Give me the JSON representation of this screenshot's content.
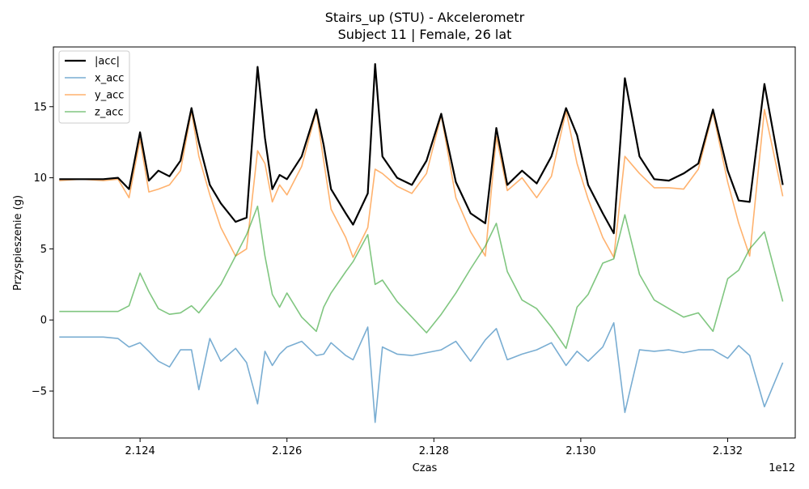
{
  "chart_data": {
    "type": "line",
    "title": "Stairs_up (STU) - Akcelerometr",
    "subtitle": "Subject 11 | Female, 26 lat",
    "xlabel": "Czas",
    "ylabel": "Przyspieszenie (g)",
    "x_offset_label": "1e12",
    "xlim": [
      2.12282,
      2.13292
    ],
    "ylim": [
      -8.3,
      19.2
    ],
    "x_ticks": [
      2.124,
      2.126,
      2.128,
      2.13,
      2.132
    ],
    "x_tick_labels": [
      "2.124",
      "2.126",
      "2.128",
      "2.130",
      "2.132"
    ],
    "y_ticks": [
      -5,
      0,
      5,
      10,
      15
    ],
    "y_tick_labels": [
      "−5",
      "0",
      "5",
      "10",
      "15"
    ],
    "grid": false,
    "legend_position": "top-left",
    "x": [
      2.1229,
      2.1232,
      2.1235,
      2.1237,
      2.12385,
      2.124,
      2.12412,
      2.12425,
      2.1244,
      2.12455,
      2.1247,
      2.1248,
      2.12495,
      2.1251,
      2.1253,
      2.12545,
      2.1256,
      2.1257,
      2.1258,
      2.1259,
      2.126,
      2.1262,
      2.1264,
      2.1265,
      2.1266,
      2.1268,
      2.1269,
      2.1271,
      2.1272,
      2.1273,
      2.1275,
      2.1277,
      2.1279,
      2.1281,
      2.1283,
      2.1285,
      2.1287,
      2.12885,
      2.129,
      2.1292,
      2.1294,
      2.1296,
      2.1298,
      2.12995,
      2.1301,
      2.1303,
      2.13045,
      2.1306,
      2.1308,
      2.131,
      2.1312,
      2.1314,
      2.1316,
      2.1318,
      2.132,
      2.13215,
      2.1323,
      2.1325,
      2.13275
    ],
    "series": [
      {
        "name": "|acc|",
        "color": "#000000",
        "values": [
          9.9,
          9.9,
          9.9,
          10,
          9.2,
          13.2,
          9.8,
          10.5,
          10.1,
          11.2,
          14.9,
          12.5,
          9.5,
          8.2,
          6.9,
          7.2,
          17.8,
          12.8,
          9.2,
          10.2,
          9.9,
          11.5,
          14.8,
          12.3,
          9.2,
          7.5,
          6.7,
          8.9,
          18,
          11.5,
          10.0,
          9.5,
          11.2,
          14.5,
          9.7,
          7.5,
          6.8,
          13.5,
          9.5,
          10.5,
          9.6,
          11.5,
          14.9,
          13.0,
          9.5,
          7.5,
          6.1,
          17,
          11.5,
          9.9,
          9.8,
          10.3,
          11,
          14.8,
          10.5,
          8.4,
          8.3,
          16.6,
          9.5
        ]
      },
      {
        "name": "x_acc",
        "color": "#1f77b4",
        "values": [
          -1.2,
          -1.2,
          -1.2,
          -1.3,
          -1.9,
          -1.6,
          -2.2,
          -2.9,
          -3.3,
          -2.1,
          -2.1,
          -4.9,
          -1.3,
          -2.9,
          -2.0,
          -3.0,
          -5.9,
          -2.2,
          -3.2,
          -2.4,
          -1.9,
          -1.5,
          -2.5,
          -2.4,
          -1.6,
          -2.5,
          -2.8,
          -0.5,
          -7.2,
          -1.9,
          -2.4,
          -2.5,
          -2.3,
          -2.1,
          -1.5,
          -2.9,
          -1.4,
          -0.6,
          -2.8,
          -2.4,
          -2.1,
          -1.6,
          -3.2,
          -2.2,
          -2.9,
          -1.9,
          -0.2,
          -6.5,
          -2.1,
          -2.2,
          -2.1,
          -2.3,
          -2.1,
          -2.1,
          -2.7,
          -1.8,
          -2.5,
          -6.1,
          -3.0
        ]
      },
      {
        "name": "y_acc",
        "color": "#ff7f0e",
        "values": [
          9.8,
          9.9,
          9.8,
          9.9,
          8.6,
          12.7,
          9.0,
          9.2,
          9.5,
          10.5,
          14.7,
          11.5,
          8.8,
          6.5,
          4.5,
          5.0,
          11.9,
          11.0,
          8.3,
          9.5,
          8.8,
          10.8,
          14.7,
          11.2,
          7.8,
          5.8,
          4.4,
          6.5,
          10.6,
          10.3,
          9.4,
          8.9,
          10.3,
          14.4,
          8.6,
          6.2,
          4.5,
          12.9,
          9.1,
          10.0,
          8.6,
          10.1,
          14.7,
          11.0,
          8.5,
          5.8,
          4.4,
          11.5,
          10.3,
          9.3,
          9.3,
          9.2,
          10.6,
          14.6,
          9.7,
          6.8,
          4.5,
          14.8,
          8.7
        ]
      },
      {
        "name": "z_acc",
        "color": "#2ca02c",
        "values": [
          0.6,
          0.6,
          0.6,
          0.6,
          1.0,
          3.3,
          2.0,
          0.8,
          0.4,
          0.5,
          1.0,
          0.5,
          1.5,
          2.5,
          4.5,
          6.0,
          8.0,
          4.5,
          1.8,
          0.9,
          1.9,
          0.2,
          -0.8,
          0.9,
          1.9,
          3.4,
          4.1,
          6.0,
          2.5,
          2.8,
          1.3,
          0.2,
          -0.9,
          0.4,
          1.9,
          3.6,
          5.2,
          6.8,
          3.4,
          1.4,
          0.8,
          -0.5,
          -2.0,
          0.9,
          1.8,
          4.0,
          4.3,
          7.4,
          3.2,
          1.4,
          0.8,
          0.2,
          0.5,
          -0.8,
          2.9,
          3.5,
          5.0,
          6.2,
          1.3
        ]
      }
    ]
  }
}
